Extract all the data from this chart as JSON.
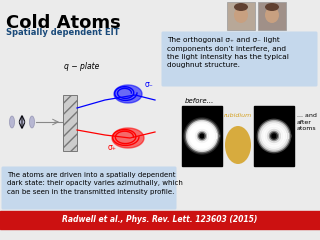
{
  "title": "Cold Atoms",
  "subtitle": "Spatially dependent EIT",
  "bg_color": "#ebebeb",
  "top_right_box_color": "#c5d8ec",
  "top_right_text": "The orthogonal σ₊ and σ₋ light\ncomponents don’t interfere, and\nthe light intensity has the typical\ndoughnut structure.",
  "bottom_left_box_color": "#c5d8ec",
  "bottom_left_text": "The atoms are driven into a spatially dependent\ndark state: their opacity varies azimuthally, which\ncan be seen in the transmitted intensity profile.",
  "bottom_bar_color": "#cc1111",
  "bottom_bar_text": "Radwell et al., Phys. Rev. Lett. 123603 (2015)",
  "q_plate_label": "q − plate",
  "sigma_plus": "σ₊",
  "sigma_minus": "σ₋",
  "before_label": "before...",
  "rubidium_label": "rubidium",
  "after_label": "... and\nafter\natoms"
}
